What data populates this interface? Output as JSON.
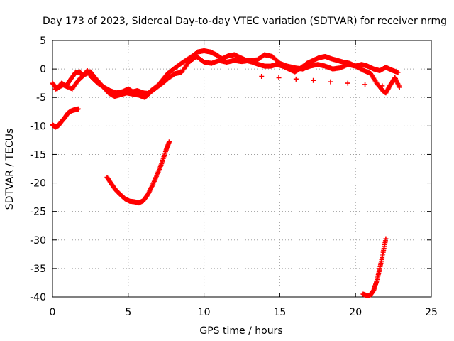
{
  "chart_data": {
    "type": "scatter",
    "title": "Day 173 of 2023, Sidereal Day-to-day VTEC variation (SDTVAR) for receiver nrmg",
    "xlabel": "GPS time / hours",
    "ylabel": "SDTVAR / TECUs",
    "xlim": [
      0,
      25
    ],
    "ylim": [
      -40,
      5
    ],
    "xticks": [
      0,
      5,
      10,
      15,
      20,
      25
    ],
    "yticks": [
      -40,
      -35,
      -30,
      -25,
      -20,
      -15,
      -10,
      -5,
      0,
      5
    ],
    "grid": true,
    "series_color": "#ff0000",
    "marker": "plus",
    "series": [
      {
        "name": "upper-main-band",
        "points": [
          [
            0.0,
            -2.5
          ],
          [
            0.3,
            -3.5
          ],
          [
            0.6,
            -2.5
          ],
          [
            0.9,
            -3.0
          ],
          [
            1.2,
            -1.8
          ],
          [
            1.5,
            -0.7
          ],
          [
            1.8,
            -0.5
          ],
          [
            2.0,
            -1.2
          ],
          [
            2.3,
            -0.3
          ],
          [
            2.6,
            -1.5
          ],
          [
            3.0,
            -2.5
          ],
          [
            3.4,
            -3.2
          ],
          [
            3.8,
            -3.8
          ],
          [
            4.2,
            -4.2
          ],
          [
            4.6,
            -4.0
          ],
          [
            5.0,
            -3.5
          ],
          [
            5.3,
            -4.0
          ],
          [
            5.6,
            -3.8
          ],
          [
            6.0,
            -4.2
          ],
          [
            6.3,
            -4.3
          ],
          [
            6.6,
            -3.6
          ],
          [
            7.0,
            -2.8
          ],
          [
            7.3,
            -1.8
          ],
          [
            7.6,
            -0.8
          ],
          [
            8.0,
            0.0
          ],
          [
            8.4,
            0.8
          ],
          [
            8.8,
            1.5
          ],
          [
            9.2,
            2.2
          ],
          [
            9.6,
            3.0
          ],
          [
            10.0,
            3.2
          ],
          [
            10.4,
            3.0
          ],
          [
            10.8,
            2.5
          ],
          [
            11.2,
            1.8
          ],
          [
            11.6,
            2.3
          ],
          [
            12.0,
            2.5
          ],
          [
            12.4,
            2.0
          ],
          [
            12.8,
            1.5
          ],
          [
            13.2,
            1.2
          ],
          [
            13.6,
            0.8
          ],
          [
            14.0,
            0.5
          ],
          [
            14.4,
            0.5
          ],
          [
            14.8,
            0.8
          ],
          [
            15.2,
            0.5
          ],
          [
            15.6,
            0.0
          ],
          [
            16.0,
            -0.5
          ],
          [
            16.4,
            0.2
          ],
          [
            16.8,
            1.0
          ],
          [
            17.2,
            1.5
          ],
          [
            17.6,
            2.0
          ],
          [
            18.0,
            2.2
          ],
          [
            18.4,
            1.8
          ],
          [
            18.8,
            1.5
          ],
          [
            19.2,
            1.2
          ],
          [
            19.6,
            1.0
          ],
          [
            20.0,
            0.5
          ],
          [
            20.4,
            0.8
          ],
          [
            20.8,
            0.5
          ],
          [
            21.2,
            0.0
          ],
          [
            21.6,
            -0.3
          ],
          [
            22.0,
            0.3
          ],
          [
            22.4,
            -0.2
          ],
          [
            22.8,
            -0.6
          ]
        ]
      },
      {
        "name": "upper-secondary-band",
        "points": [
          [
            0.2,
            -3.5
          ],
          [
            0.7,
            -2.8
          ],
          [
            1.3,
            -3.5
          ],
          [
            1.7,
            -2.0
          ],
          [
            2.1,
            -1.0
          ],
          [
            2.5,
            -0.5
          ],
          [
            2.9,
            -1.8
          ],
          [
            3.3,
            -3.0
          ],
          [
            3.7,
            -4.2
          ],
          [
            4.1,
            -4.8
          ],
          [
            4.5,
            -4.5
          ],
          [
            4.9,
            -4.2
          ],
          [
            5.3,
            -4.4
          ],
          [
            5.7,
            -4.6
          ],
          [
            6.1,
            -5.0
          ],
          [
            6.5,
            -4.0
          ],
          [
            6.9,
            -3.2
          ],
          [
            7.3,
            -2.4
          ],
          [
            7.7,
            -1.5
          ],
          [
            8.1,
            -0.8
          ],
          [
            8.5,
            -0.6
          ],
          [
            9.0,
            1.2
          ],
          [
            9.5,
            2.2
          ],
          [
            10.0,
            1.2
          ],
          [
            10.5,
            1.0
          ],
          [
            11.0,
            1.5
          ],
          [
            11.5,
            1.2
          ],
          [
            12.0,
            1.5
          ],
          [
            12.5,
            1.3
          ],
          [
            13.0,
            1.5
          ],
          [
            13.5,
            1.6
          ],
          [
            14.0,
            2.5
          ],
          [
            14.5,
            2.2
          ],
          [
            15.0,
            1.0
          ],
          [
            15.5,
            0.5
          ],
          [
            16.0,
            0.2
          ],
          [
            16.5,
            0.0
          ],
          [
            17.0,
            0.5
          ],
          [
            17.5,
            0.8
          ],
          [
            18.0,
            0.5
          ],
          [
            18.5,
            0.0
          ],
          [
            19.0,
            0.2
          ],
          [
            19.5,
            0.8
          ],
          [
            20.0,
            0.5
          ],
          [
            20.5,
            -0.2
          ],
          [
            21.0,
            -0.8
          ],
          [
            21.4,
            -2.5
          ],
          [
            21.8,
            -3.8
          ],
          [
            22.0,
            -4.2
          ],
          [
            22.3,
            -2.8
          ],
          [
            22.6,
            -1.5
          ],
          [
            22.9,
            -3.2
          ],
          [
            13.8,
            -1.3
          ]
        ]
      },
      {
        "name": "early-low-segment",
        "points": [
          [
            0.0,
            -9.8
          ],
          [
            0.2,
            -10.2
          ],
          [
            0.4,
            -9.9
          ],
          [
            0.6,
            -9.2
          ],
          [
            0.8,
            -8.6
          ],
          [
            1.0,
            -7.8
          ],
          [
            1.2,
            -7.4
          ],
          [
            1.4,
            -7.2
          ],
          [
            1.6,
            -7.1
          ],
          [
            1.7,
            -7.0
          ]
        ]
      },
      {
        "name": "trough-segment",
        "points": [
          [
            3.6,
            -19.0
          ],
          [
            3.9,
            -20.2
          ],
          [
            4.2,
            -21.3
          ],
          [
            4.5,
            -22.1
          ],
          [
            4.8,
            -22.8
          ],
          [
            5.1,
            -23.2
          ],
          [
            5.4,
            -23.3
          ],
          [
            5.7,
            -23.5
          ],
          [
            6.0,
            -23.1
          ],
          [
            6.3,
            -22.0
          ],
          [
            6.6,
            -20.4
          ],
          [
            6.9,
            -18.6
          ],
          [
            7.2,
            -16.6
          ],
          [
            7.5,
            -14.2
          ],
          [
            7.7,
            -12.8
          ]
        ]
      },
      {
        "name": "late-low-segment",
        "points": [
          [
            20.5,
            -39.5
          ],
          [
            20.8,
            -39.8
          ],
          [
            21.0,
            -39.6
          ],
          [
            21.2,
            -38.8
          ],
          [
            21.4,
            -37.2
          ],
          [
            21.6,
            -35.0
          ],
          [
            21.8,
            -32.5
          ],
          [
            22.0,
            -29.8
          ]
        ]
      }
    ]
  }
}
